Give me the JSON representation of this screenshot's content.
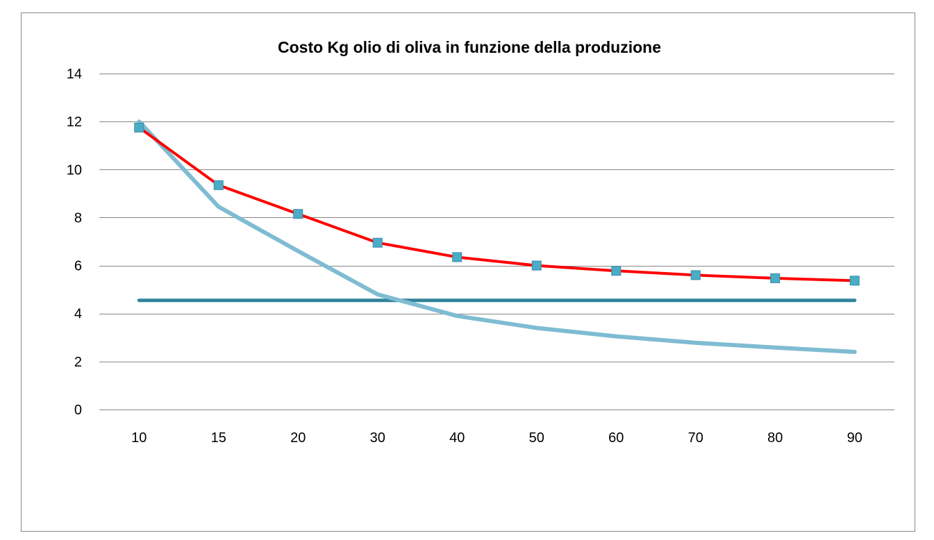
{
  "chart_data": {
    "type": "line",
    "title": "Costo Kg olio di oliva in funzione della produzione",
    "xlabel": "",
    "ylabel": "",
    "categories": [
      "10",
      "15",
      "20",
      "30",
      "40",
      "50",
      "60",
      "70",
      "80",
      "90"
    ],
    "ylim": [
      0,
      14
    ],
    "yticks": [
      0,
      2,
      4,
      6,
      8,
      10,
      12,
      14
    ],
    "grid": true,
    "legend": "none",
    "series": [
      {
        "color": "#ff0000",
        "marker": "square",
        "marker_color": "#4bacc6",
        "values": [
          11.75,
          9.35,
          8.15,
          6.95,
          6.35,
          6.0,
          5.78,
          5.6,
          5.47,
          5.37
        ]
      },
      {
        "color": "#7fbcd2",
        "marker": "none",
        "values": [
          12.0,
          8.45,
          6.6,
          4.8,
          3.9,
          3.4,
          3.05,
          2.78,
          2.58,
          2.4
        ]
      },
      {
        "color": "#31849b",
        "marker": "none",
        "values": [
          4.55,
          4.55,
          4.55,
          4.55,
          4.55,
          4.55,
          4.55,
          4.55,
          4.55,
          4.55
        ]
      }
    ],
    "colors": {
      "gridline": "#868686",
      "frame": "#868686"
    }
  }
}
